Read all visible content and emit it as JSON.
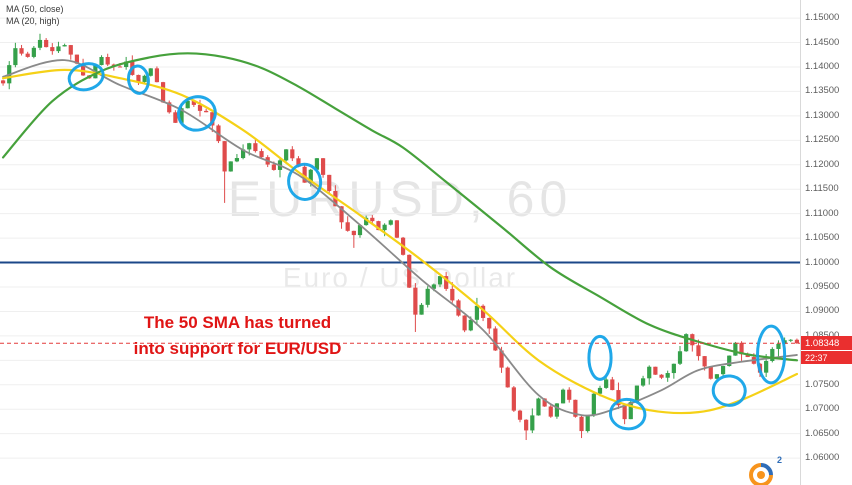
{
  "legend": {
    "ma50": "MA (50, close)",
    "ma20": "MA (20, high)"
  },
  "watermark": {
    "title": "EURUSD, 60",
    "subtitle": "Euro / US Dollar"
  },
  "annotation": {
    "line1": "The 50 SMA has turned",
    "line2": "into support for EUR/USD",
    "color": "#e01515"
  },
  "price_axis": {
    "current_price_label": "1.08348",
    "countdown_label": "22:37",
    "badge_color": "#ea2f2f",
    "ticks": [
      "1.15000",
      "1.14500",
      "1.14000",
      "1.13500",
      "1.13000",
      "1.12500",
      "1.12000",
      "1.11500",
      "1.11000",
      "1.10500",
      "1.10000",
      "1.09500",
      "1.09000",
      "1.08500",
      "1.08000",
      "1.07500",
      "1.07000",
      "1.06500",
      "1.06000"
    ]
  },
  "logo": {
    "superscript": "2"
  },
  "chart_data": {
    "type": "candlestick",
    "symbol": "EURUSD",
    "timeframe": "60",
    "title": "EURUSD, 60",
    "price_max": 1.1537,
    "price_min": 1.0545,
    "bars": 130,
    "last_price": 1.08348,
    "levels": {
      "horizontal_blue_line": 1.1,
      "current_price_dashed_line": 1.08348
    },
    "close_waypoints": [
      [
        0,
        1.1365
      ],
      [
        1,
        1.1405
      ],
      [
        2,
        1.144
      ],
      [
        4,
        1.1422
      ],
      [
        6,
        1.1452
      ],
      [
        8,
        1.143
      ],
      [
        10,
        1.1448
      ],
      [
        11,
        1.143
      ],
      [
        13,
        1.1387
      ],
      [
        14,
        1.1378
      ],
      [
        16,
        1.142
      ],
      [
        18,
        1.1398
      ],
      [
        20,
        1.1408
      ],
      [
        22,
        1.1366
      ],
      [
        24,
        1.1402
      ],
      [
        26,
        1.133
      ],
      [
        28,
        1.1288
      ],
      [
        30,
        1.1335
      ],
      [
        31,
        1.132
      ],
      [
        33,
        1.1308
      ],
      [
        35,
        1.1245
      ],
      [
        36,
        1.119
      ],
      [
        38,
        1.1215
      ],
      [
        40,
        1.1245
      ],
      [
        42,
        1.122
      ],
      [
        44,
        1.119
      ],
      [
        46,
        1.1228
      ],
      [
        48,
        1.12
      ],
      [
        49,
        1.1165
      ],
      [
        51,
        1.1215
      ],
      [
        53,
        1.115
      ],
      [
        55,
        1.108
      ],
      [
        57,
        1.1052
      ],
      [
        59,
        1.1095
      ],
      [
        61,
        1.1068
      ],
      [
        63,
        1.1088
      ],
      [
        65,
        1.1018
      ],
      [
        66,
        1.0948
      ],
      [
        67,
        1.089
      ],
      [
        69,
        1.0942
      ],
      [
        71,
        1.0968
      ],
      [
        73,
        1.092
      ],
      [
        75,
        1.0862
      ],
      [
        77,
        1.0912
      ],
      [
        79,
        1.0862
      ],
      [
        81,
        1.0788
      ],
      [
        83,
        1.07
      ],
      [
        85,
        1.0658
      ],
      [
        87,
        1.0722
      ],
      [
        89,
        1.0682
      ],
      [
        91,
        1.0742
      ],
      [
        93,
        1.0688
      ],
      [
        94,
        1.0652
      ],
      [
        96,
        1.0732
      ],
      [
        98,
        1.0758
      ],
      [
        100,
        1.0712
      ],
      [
        101,
        1.0682
      ],
      [
        103,
        1.0748
      ],
      [
        105,
        1.0782
      ],
      [
        107,
        1.0762
      ],
      [
        109,
        1.0788
      ],
      [
        111,
        1.0858
      ],
      [
        113,
        1.0812
      ],
      [
        115,
        1.0758
      ],
      [
        117,
        1.0792
      ],
      [
        119,
        1.0832
      ],
      [
        121,
        1.0802
      ],
      [
        123,
        1.0778
      ],
      [
        125,
        1.0822
      ],
      [
        127,
        1.0842
      ],
      [
        129,
        1.08348
      ]
    ],
    "special_wicks": [
      {
        "i": 6,
        "side": "high",
        "p": 1.1468
      },
      {
        "i": 36,
        "side": "low",
        "p": 1.1122
      },
      {
        "i": 57,
        "side": "low",
        "p": 1.103
      },
      {
        "i": 67,
        "side": "low",
        "p": 1.0858
      },
      {
        "i": 85,
        "side": "low",
        "p": 1.0637
      },
      {
        "i": 94,
        "side": "low",
        "p": 1.0641
      }
    ],
    "moving_averages": [
      {
        "name": "slow-green",
        "color": "#46a13c",
        "width": 2.2,
        "waypoints": [
          [
            0,
            1.1215
          ],
          [
            8,
            1.133
          ],
          [
            16,
            1.1392
          ],
          [
            24,
            1.142
          ],
          [
            30,
            1.1428
          ],
          [
            36,
            1.142
          ],
          [
            42,
            1.1398
          ],
          [
            48,
            1.136
          ],
          [
            54,
            1.1315
          ],
          [
            60,
            1.127
          ],
          [
            65,
            1.1235
          ],
          [
            72,
            1.1165
          ],
          [
            81,
            1.1073
          ],
          [
            89,
            1.099
          ],
          [
            97,
            1.093
          ],
          [
            105,
            1.0873
          ],
          [
            113,
            1.0838
          ],
          [
            121,
            1.0812
          ],
          [
            129,
            1.08
          ]
        ]
      },
      {
        "name": "ma50-yellow",
        "color": "#f5d117",
        "width": 2.2,
        "waypoints": [
          [
            0,
            1.1377
          ],
          [
            10,
            1.1394
          ],
          [
            19,
            1.1377
          ],
          [
            29,
            1.1343
          ],
          [
            39,
            1.1271
          ],
          [
            48,
            1.1185
          ],
          [
            58,
            1.1097
          ],
          [
            68,
            1.1005
          ],
          [
            78,
            1.0903
          ],
          [
            87,
            1.08
          ],
          [
            97,
            1.0729
          ],
          [
            105,
            1.0698
          ],
          [
            113,
            1.0694
          ],
          [
            120,
            1.0719
          ],
          [
            129,
            1.0772
          ]
        ]
      },
      {
        "name": "ma20-gray",
        "color": "#8a8a8a",
        "width": 1.8,
        "waypoints": [
          [
            0,
            1.138
          ],
          [
            10,
            1.1414
          ],
          [
            19,
            1.1363
          ],
          [
            29,
            1.1312
          ],
          [
            39,
            1.123
          ],
          [
            48,
            1.1179
          ],
          [
            58,
            1.1077
          ],
          [
            68,
            1.0965
          ],
          [
            78,
            1.0862
          ],
          [
            87,
            1.0729
          ],
          [
            94,
            1.0688
          ],
          [
            100,
            1.0703
          ],
          [
            107,
            1.0739
          ],
          [
            113,
            1.078
          ],
          [
            120,
            1.0797
          ],
          [
            129,
            1.0811
          ]
        ]
      }
    ],
    "ellipse_annotations": [
      {
        "bar": 13.5,
        "price": 1.138,
        "rx_bars": 2.8,
        "ry_price": 0.0026,
        "rotate": -15
      },
      {
        "bar": 22,
        "price": 1.1374,
        "rx_bars": 1.6,
        "ry_price": 0.0028,
        "rotate": -8
      },
      {
        "bar": 31.5,
        "price": 1.1305,
        "rx_bars": 3.0,
        "ry_price": 0.0034,
        "rotate": -12
      },
      {
        "bar": 49,
        "price": 1.1165,
        "rx_bars": 2.6,
        "ry_price": 0.0036,
        "rotate": -8
      },
      {
        "bar": 97,
        "price": 1.0805,
        "rx_bars": 1.8,
        "ry_price": 0.0044,
        "rotate": 0
      },
      {
        "bar": 101.5,
        "price": 1.069,
        "rx_bars": 2.8,
        "ry_price": 0.003,
        "rotate": 8
      },
      {
        "bar": 118,
        "price": 1.0738,
        "rx_bars": 2.6,
        "ry_price": 0.003,
        "rotate": 5
      },
      {
        "bar": 124.8,
        "price": 1.0812,
        "rx_bars": 2.2,
        "ry_price": 0.0058,
        "rotate": 0
      }
    ],
    "colors": {
      "up": "#35a04a",
      "down": "#df4b4b",
      "grid": "#efefef",
      "axis_text": "#5d5d5d",
      "blue_line": "#1b4788",
      "dashed_line": "#e33a3a",
      "circle": "#14a3e8"
    },
    "noise_seed": 11,
    "close_jitter": 0.0005,
    "wick": 0.0018
  }
}
